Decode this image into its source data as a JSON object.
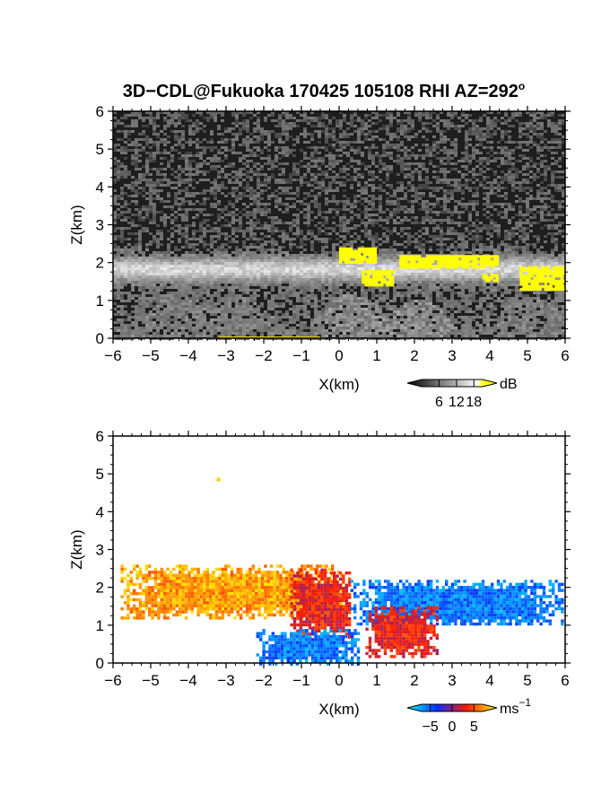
{
  "figure": {
    "title": "3D−CDL@Fukuoka 170425 105108 RHI AZ=292",
    "title_superscript": "o"
  },
  "chart_data": [
    {
      "type": "heatmap",
      "panel": "top",
      "quantity": "backscatter intensity",
      "xlabel": "X(km)",
      "ylabel": "Z(km)",
      "xlim": [
        -6,
        6
      ],
      "ylim": [
        0,
        6
      ],
      "xticks": [
        -6,
        -5,
        -4,
        -3,
        -2,
        -1,
        0,
        1,
        2,
        3,
        4,
        5,
        6
      ],
      "yticks": [
        0,
        1,
        2,
        3,
        4,
        5,
        6
      ],
      "colorbar": {
        "unit": "dB",
        "ticks": [
          6,
          12,
          18
        ],
        "range": [
          0,
          21
        ],
        "colormap": "grayscale with yellow above 18",
        "colors": [
          "#000000",
          "#ffffff",
          "#ffff00"
        ]
      },
      "background_noise_dB": 3,
      "cloud_layer_base_height_km": [
        1.3,
        2.4
      ],
      "cloud_layer_x_extent_km": [
        -6,
        6
      ],
      "high_intensity_regions_yellow": [
        {
          "x": [
            0,
            1
          ],
          "z": [
            2.0,
            2.4
          ]
        },
        {
          "x": [
            0.6,
            1.4
          ],
          "z": [
            1.4,
            1.8
          ]
        },
        {
          "x": [
            1.6,
            4.2
          ],
          "z": [
            1.9,
            2.2
          ]
        },
        {
          "x": [
            3.8,
            4.2
          ],
          "z": [
            1.5,
            1.7
          ]
        },
        {
          "x": [
            4.8,
            6.0
          ],
          "z": [
            1.3,
            1.9
          ]
        }
      ]
    },
    {
      "type": "heatmap",
      "panel": "bottom",
      "quantity": "Doppler velocity",
      "xlabel": "X(km)",
      "ylabel": "Z(km)",
      "xlim": [
        -6,
        6
      ],
      "ylim": [
        0,
        6
      ],
      "xticks": [
        -6,
        -5,
        -4,
        -3,
        -2,
        -1,
        0,
        1,
        2,
        3,
        4,
        5,
        6
      ],
      "yticks": [
        0,
        1,
        2,
        3,
        4,
        5,
        6
      ],
      "colorbar": {
        "unit": "ms",
        "unit_exponent": "−1",
        "ticks": [
          -5,
          0,
          5
        ],
        "range": [
          -7,
          7
        ],
        "colormap": "cyan-blue-red-yellow",
        "colors": [
          "#00ffff",
          "#0a2cff",
          "#ff1a00",
          "#ffff00"
        ]
      },
      "regions": [
        {
          "x": [
            -5.8,
            0.1
          ],
          "z": [
            1.2,
            2.6
          ],
          "velocity_ms": 5
        },
        {
          "x": [
            -1.3,
            0.3
          ],
          "z": [
            0.7,
            2.5
          ],
          "velocity_ms": 2
        },
        {
          "x": [
            0.3,
            5.9
          ],
          "z": [
            1.0,
            2.2
          ],
          "velocity_ms": -4
        },
        {
          "x": [
            0.7,
            2.6
          ],
          "z": [
            0.2,
            1.5
          ],
          "velocity_ms": 2
        },
        {
          "x": [
            -2.2,
            0.5
          ],
          "z": [
            0.0,
            0.9
          ],
          "velocity_ms": -4
        }
      ],
      "isolated_point": {
        "x": -3.2,
        "z": 4.85,
        "velocity_ms": 6
      }
    }
  ]
}
